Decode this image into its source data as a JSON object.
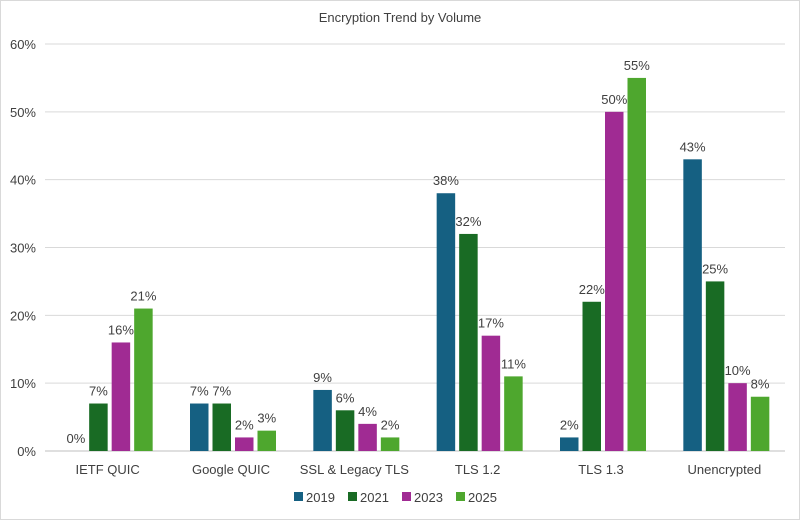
{
  "chart_data": {
    "type": "bar",
    "title": "Encryption Trend by Volume",
    "xlabel": "",
    "ylabel": "",
    "categories": [
      "IETF QUIC",
      "Google QUIC",
      "SSL & Legacy TLS",
      "TLS 1.2",
      "TLS 1.3",
      "Unencrypted"
    ],
    "series": [
      {
        "name": "2019",
        "color": "#156082",
        "values": [
          0,
          7,
          9,
          38,
          2,
          43
        ]
      },
      {
        "name": "2021",
        "color": "#196B24",
        "values": [
          7,
          7,
          6,
          32,
          22,
          25
        ]
      },
      {
        "name": "2023",
        "color": "#A02B93",
        "values": [
          16,
          2,
          4,
          17,
          50,
          10
        ]
      },
      {
        "name": "2025",
        "color": "#4EA72E",
        "values": [
          21,
          3,
          2,
          11,
          55,
          8
        ]
      }
    ],
    "ylim": [
      0,
      60
    ],
    "yticks": [
      "0%",
      "10%",
      "20%",
      "30%",
      "40%",
      "50%",
      "60%"
    ],
    "value_suffix": "%",
    "grid": true,
    "legend": "bottom"
  }
}
